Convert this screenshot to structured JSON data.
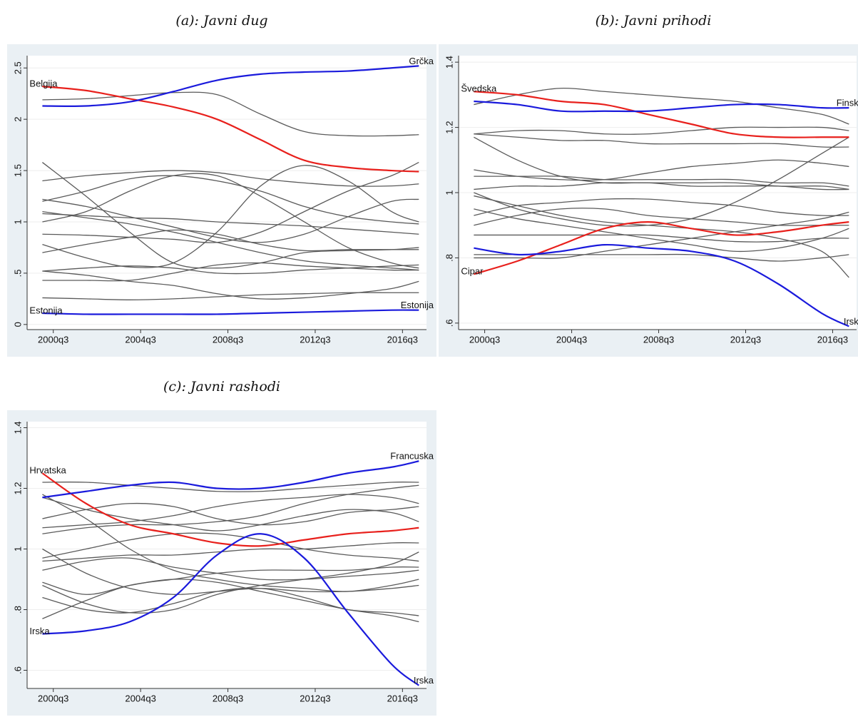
{
  "chart_data": [
    {
      "type": "line",
      "title": "(a): Javni dug",
      "grid": true,
      "x": [
        2000,
        2002,
        2004,
        2006,
        2008,
        2010,
        2012,
        2014,
        2016,
        2017.25
      ],
      "xlim": [
        1999.3,
        2017.6
      ],
      "xticks": [
        {
          "value": 2000.5,
          "label": "2000q3"
        },
        {
          "value": 2004.5,
          "label": "2004q3"
        },
        {
          "value": 2008.5,
          "label": "2008q3"
        },
        {
          "value": 2012.5,
          "label": "2012q3"
        },
        {
          "value": 2016.5,
          "label": "2016q3"
        }
      ],
      "ylim": [
        -0.05,
        2.62
      ],
      "yticks": [
        0,
        {
          "value": 0.5,
          "label": ".5"
        },
        1,
        1.5,
        2,
        2.5
      ],
      "series": [
        {
          "color": "#5a5a5a",
          "values": [
            2.19,
            2.2,
            2.23,
            2.26,
            2.24,
            2.05,
            1.88,
            1.84,
            1.84,
            1.85
          ]
        },
        {
          "color": "#5a5a5a",
          "values": [
            1.58,
            1.25,
            0.9,
            0.6,
            0.55,
            0.6,
            0.7,
            0.72,
            0.73,
            0.75
          ]
        },
        {
          "color": "#5a5a5a",
          "values": [
            1.4,
            1.45,
            1.48,
            1.5,
            1.48,
            1.42,
            1.38,
            1.35,
            1.35,
            1.37
          ]
        },
        {
          "color": "#5a5a5a",
          "values": [
            1.2,
            1.3,
            1.42,
            1.45,
            1.4,
            1.3,
            1.15,
            1.05,
            1.0,
            0.98
          ]
        },
        {
          "color": "#5a5a5a",
          "values": [
            1.08,
            1.06,
            1.04,
            1.03,
            1.0,
            0.98,
            0.96,
            0.93,
            0.9,
            0.88
          ]
        },
        {
          "color": "#5a5a5a",
          "values": [
            1.0,
            1.1,
            1.3,
            1.45,
            1.45,
            1.25,
            1.0,
            0.75,
            0.6,
            0.55
          ]
        },
        {
          "color": "#5a5a5a",
          "values": [
            0.88,
            0.87,
            0.85,
            0.83,
            0.8,
            0.9,
            1.1,
            1.3,
            1.45,
            1.58
          ]
        },
        {
          "color": "#5a5a5a",
          "values": [
            0.78,
            0.65,
            0.56,
            0.6,
            0.9,
            1.35,
            1.55,
            1.4,
            1.1,
            1.0
          ]
        },
        {
          "color": "#5a5a5a",
          "values": [
            0.7,
            0.78,
            0.85,
            0.92,
            0.88,
            0.78,
            0.72,
            0.73,
            0.73,
            0.73
          ]
        },
        {
          "color": "#5a5a5a",
          "values": [
            0.52,
            0.55,
            0.57,
            0.55,
            0.5,
            0.5,
            0.53,
            0.55,
            0.57,
            0.58
          ]
        },
        {
          "color": "#5a5a5a",
          "values": [
            0.52,
            0.48,
            0.42,
            0.38,
            0.3,
            0.25,
            0.26,
            0.3,
            0.35,
            0.42
          ]
        },
        {
          "color": "#5a5a5a",
          "values": [
            0.43,
            0.43,
            0.43,
            0.5,
            0.58,
            0.6,
            0.57,
            0.55,
            0.53,
            0.53
          ]
        },
        {
          "color": "#5a5a5a",
          "values": [
            0.26,
            0.25,
            0.24,
            0.25,
            0.27,
            0.29,
            0.3,
            0.31,
            0.31,
            0.31
          ]
        },
        {
          "color": "#5a5a5a",
          "values": [
            1.22,
            1.15,
            1.05,
            0.95,
            0.85,
            0.8,
            0.88,
            1.05,
            1.2,
            1.22
          ]
        },
        {
          "color": "#5a5a5a",
          "values": [
            1.1,
            1.04,
            0.98,
            0.9,
            0.8,
            0.7,
            0.62,
            0.58,
            0.55,
            0.53
          ]
        },
        {
          "name": "Belgija",
          "color": "#e8201c",
          "labels": [
            "start"
          ],
          "values": [
            2.32,
            2.28,
            2.2,
            2.12,
            2.0,
            1.8,
            1.6,
            1.53,
            1.5,
            1.49
          ]
        },
        {
          "name": "Grčka",
          "color": "#1a1adc",
          "labels": [
            "end"
          ],
          "values": [
            2.13,
            2.13,
            2.17,
            2.27,
            2.38,
            2.44,
            2.46,
            2.47,
            2.5,
            2.52
          ]
        },
        {
          "name": "Estonija",
          "color": "#1a1adc",
          "labels": [
            "start",
            "end"
          ],
          "values": [
            0.11,
            0.1,
            0.1,
            0.1,
            0.1,
            0.11,
            0.12,
            0.13,
            0.14,
            0.14
          ]
        }
      ]
    },
    {
      "type": "line",
      "title": "(b): Javni prihodi",
      "grid": true,
      "x": [
        2000,
        2002,
        2004,
        2006,
        2008,
        2010,
        2012,
        2014,
        2016,
        2017.25
      ],
      "xlim": [
        1999.3,
        2017.6
      ],
      "xticks": [
        {
          "value": 2000.5,
          "label": "2000q3"
        },
        {
          "value": 2004.5,
          "label": "2004q3"
        },
        {
          "value": 2008.5,
          "label": "2008q3"
        },
        {
          "value": 2012.5,
          "label": "2012q3"
        },
        {
          "value": 2016.5,
          "label": "2016q3"
        }
      ],
      "ylim": [
        0.58,
        1.42
      ],
      "yticks": [
        {
          "value": 0.6,
          "label": ".6"
        },
        {
          "value": 0.8,
          "label": ".8"
        },
        1,
        1.2,
        1.4
      ],
      "series": [
        {
          "color": "#5a5a5a",
          "values": [
            1.18,
            1.19,
            1.19,
            1.18,
            1.18,
            1.19,
            1.2,
            1.2,
            1.2,
            1.19
          ]
        },
        {
          "color": "#5a5a5a",
          "values": [
            1.18,
            1.17,
            1.16,
            1.16,
            1.15,
            1.15,
            1.15,
            1.15,
            1.14,
            1.14
          ]
        },
        {
          "color": "#5a5a5a",
          "values": [
            1.27,
            1.3,
            1.32,
            1.31,
            1.3,
            1.29,
            1.28,
            1.26,
            1.24,
            1.21
          ]
        },
        {
          "color": "#5a5a5a",
          "values": [
            1.17,
            1.1,
            1.05,
            1.03,
            1.03,
            1.02,
            1.02,
            1.02,
            1.01,
            1.01
          ]
        },
        {
          "color": "#5a5a5a",
          "values": [
            1.05,
            1.05,
            1.05,
            1.04,
            1.04,
            1.04,
            1.04,
            1.03,
            1.03,
            1.02
          ]
        },
        {
          "color": "#5a5a5a",
          "values": [
            1.07,
            1.05,
            1.04,
            1.04,
            1.06,
            1.08,
            1.09,
            1.1,
            1.09,
            1.08
          ]
        },
        {
          "color": "#5a5a5a",
          "values": [
            1.0,
            0.95,
            0.92,
            0.9,
            0.9,
            0.92,
            0.97,
            1.04,
            1.12,
            1.17
          ]
        },
        {
          "color": "#5a5a5a",
          "values": [
            0.93,
            0.96,
            0.97,
            0.98,
            0.98,
            0.97,
            0.96,
            0.94,
            0.93,
            0.93
          ]
        },
        {
          "color": "#5a5a5a",
          "values": [
            0.99,
            0.96,
            0.93,
            0.91,
            0.9,
            0.89,
            0.88,
            0.86,
            0.82,
            0.74
          ]
        },
        {
          "color": "#5a5a5a",
          "values": [
            0.87,
            0.87,
            0.87,
            0.87,
            0.87,
            0.86,
            0.85,
            0.85,
            0.86,
            0.86
          ]
        },
        {
          "color": "#5a5a5a",
          "values": [
            0.81,
            0.81,
            0.81,
            0.81,
            0.81,
            0.81,
            0.8,
            0.79,
            0.8,
            0.81
          ]
        },
        {
          "color": "#5a5a5a",
          "values": [
            0.8,
            0.8,
            0.8,
            0.82,
            0.84,
            0.86,
            0.88,
            0.9,
            0.92,
            0.94
          ]
        },
        {
          "color": "#5a5a5a",
          "values": [
            0.9,
            0.93,
            0.95,
            0.95,
            0.93,
            0.92,
            0.91,
            0.9,
            0.9,
            0.9
          ]
        },
        {
          "color": "#5a5a5a",
          "values": [
            1.01,
            1.02,
            1.02,
            1.03,
            1.03,
            1.03,
            1.03,
            1.02,
            1.02,
            1.01
          ]
        },
        {
          "color": "#5a5a5a",
          "values": [
            0.95,
            0.92,
            0.9,
            0.88,
            0.86,
            0.84,
            0.82,
            0.83,
            0.86,
            0.89
          ]
        },
        {
          "name": "Švedska",
          "color": "#e8201c",
          "labels": [
            "start"
          ],
          "values": [
            1.31,
            1.3,
            1.28,
            1.27,
            1.24,
            1.21,
            1.18,
            1.17,
            1.17,
            1.17
          ]
        },
        {
          "name": "Finska",
          "color": "#1a1adc",
          "labels": [
            "end"
          ],
          "values": [
            1.28,
            1.27,
            1.25,
            1.25,
            1.25,
            1.26,
            1.27,
            1.27,
            1.26,
            1.26
          ]
        },
        {
          "name": "Cipar",
          "color": "#e8201c",
          "labels": [
            "start"
          ],
          "values": [
            0.75,
            0.79,
            0.84,
            0.89,
            0.91,
            0.89,
            0.87,
            0.88,
            0.9,
            0.91
          ]
        },
        {
          "name": "Irska",
          "color": "#1a1adc",
          "labels": [
            "end"
          ],
          "values": [
            0.83,
            0.81,
            0.82,
            0.84,
            0.83,
            0.82,
            0.79,
            0.72,
            0.63,
            0.59
          ]
        }
      ]
    },
    {
      "type": "line",
      "title": "(c): Javni rashodi",
      "grid": true,
      "x": [
        2000,
        2002,
        2004,
        2006,
        2008,
        2010,
        2012,
        2014,
        2016,
        2017.25
      ],
      "xlim": [
        1999.3,
        2017.6
      ],
      "xticks": [
        {
          "value": 2000.5,
          "label": "2000q3"
        },
        {
          "value": 2004.5,
          "label": "2004q3"
        },
        {
          "value": 2008.5,
          "label": "2008q3"
        },
        {
          "value": 2012.5,
          "label": "2012q3"
        },
        {
          "value": 2016.5,
          "label": "2016q3"
        }
      ],
      "ylim": [
        0.54,
        1.42
      ],
      "yticks": [
        {
          "value": 0.6,
          "label": ".6"
        },
        {
          "value": 0.8,
          "label": ".8"
        },
        1,
        1.2,
        1.4
      ],
      "series": [
        {
          "color": "#5a5a5a",
          "values": [
            1.22,
            1.22,
            1.21,
            1.2,
            1.19,
            1.19,
            1.2,
            1.21,
            1.22,
            1.22
          ]
        },
        {
          "color": "#5a5a5a",
          "values": [
            1.18,
            1.1,
            1.0,
            0.93,
            0.9,
            0.88,
            0.87,
            0.86,
            0.88,
            0.9
          ]
        },
        {
          "color": "#5a5a5a",
          "values": [
            1.1,
            1.13,
            1.15,
            1.14,
            1.1,
            1.08,
            1.09,
            1.12,
            1.13,
            1.14
          ]
        },
        {
          "color": "#5a5a5a",
          "values": [
            1.05,
            1.07,
            1.08,
            1.08,
            1.09,
            1.11,
            1.15,
            1.18,
            1.2,
            1.21
          ]
        },
        {
          "color": "#5a5a5a",
          "values": [
            0.97,
            1.0,
            1.03,
            1.05,
            1.05,
            1.03,
            1.0,
            0.98,
            0.97,
            0.96
          ]
        },
        {
          "color": "#5a5a5a",
          "values": [
            0.96,
            0.97,
            0.98,
            0.98,
            0.99,
            1.0,
            1.0,
            1.01,
            1.02,
            1.02
          ]
        },
        {
          "color": "#5a5a5a",
          "values": [
            0.77,
            0.83,
            0.88,
            0.9,
            0.92,
            0.93,
            0.93,
            0.93,
            0.94,
            0.94
          ]
        },
        {
          "color": "#5a5a5a",
          "values": [
            0.88,
            0.82,
            0.79,
            0.8,
            0.85,
            0.88,
            0.9,
            0.92,
            0.95,
            0.99
          ]
        },
        {
          "color": "#5a5a5a",
          "values": [
            0.84,
            0.8,
            0.79,
            0.82,
            0.86,
            0.87,
            0.84,
            0.8,
            0.79,
            0.78
          ]
        },
        {
          "color": "#5a5a5a",
          "values": [
            0.89,
            0.85,
            0.88,
            0.9,
            0.89,
            0.86,
            0.83,
            0.8,
            0.78,
            0.76
          ]
        },
        {
          "color": "#5a5a5a",
          "values": [
            0.93,
            0.96,
            0.97,
            0.94,
            0.92,
            0.9,
            0.9,
            0.91,
            0.92,
            0.93
          ]
        },
        {
          "color": "#5a5a5a",
          "values": [
            1.17,
            1.13,
            1.1,
            1.08,
            1.06,
            1.08,
            1.11,
            1.13,
            1.12,
            1.09
          ]
        },
        {
          "color": "#5a5a5a",
          "values": [
            1.0,
            0.92,
            0.87,
            0.85,
            0.86,
            0.87,
            0.86,
            0.86,
            0.87,
            0.88
          ]
        },
        {
          "color": "#5a5a5a",
          "values": [
            1.07,
            1.08,
            1.09,
            1.11,
            1.14,
            1.16,
            1.17,
            1.18,
            1.17,
            1.15
          ]
        },
        {
          "name": "Hrvatska",
          "color": "#e8201c",
          "labels": [
            "start"
          ],
          "values": [
            1.25,
            1.15,
            1.08,
            1.05,
            1.02,
            1.01,
            1.03,
            1.05,
            1.06,
            1.07
          ]
        },
        {
          "name": "Francuska",
          "color": "#1a1adc",
          "labels": [
            "end"
          ],
          "values": [
            1.17,
            1.19,
            1.21,
            1.22,
            1.2,
            1.2,
            1.22,
            1.25,
            1.27,
            1.29
          ]
        },
        {
          "name": "Irska",
          "color": "#1a1adc",
          "labels": [
            "start",
            "end"
          ],
          "values": [
            0.72,
            0.73,
            0.76,
            0.84,
            0.98,
            1.05,
            0.97,
            0.79,
            0.62,
            0.55
          ]
        }
      ]
    }
  ]
}
